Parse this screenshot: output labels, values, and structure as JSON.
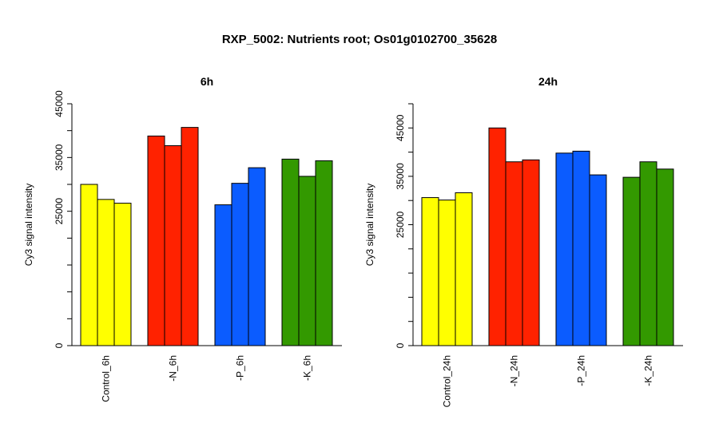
{
  "figure": {
    "title": "RXP_5002: Nutrients root; Os01g0102700_35628"
  },
  "chart_data": [
    {
      "type": "bar",
      "title": "6h",
      "ylabel": "Cy3 signal intensity",
      "xlabel": "",
      "ylim": [
        0,
        45000
      ],
      "y_ticks": [
        0,
        25000,
        35000,
        45000
      ],
      "y_tick_labels": [
        "0",
        "25000",
        "35000",
        "45000"
      ],
      "categories": [
        "Control_6h",
        "-N_6h",
        "-P_6h",
        "-K_6h"
      ],
      "colors": [
        "#ffff00",
        "#ff2200",
        "#0b5cff",
        "#339900"
      ],
      "values": [
        [
          30000,
          27200,
          26500
        ],
        [
          39000,
          37200,
          40600
        ],
        [
          26200,
          30200,
          33100
        ],
        [
          34700,
          31500,
          34400
        ]
      ],
      "grid": false,
      "legend": "none"
    },
    {
      "type": "bar",
      "title": "24h",
      "ylabel": "Cy3 signal intensity",
      "xlabel": "",
      "ylim": [
        0,
        50000
      ],
      "y_ticks": [
        0,
        25000,
        35000,
        45000
      ],
      "y_tick_labels": [
        "0",
        "25000",
        "35000",
        "45000"
      ],
      "categories": [
        "Control_24h",
        "-N_24h",
        "-P_24h",
        "-K_24h"
      ],
      "colors": [
        "#ffff00",
        "#ff2200",
        "#0b5cff",
        "#339900"
      ],
      "values": [
        [
          30600,
          30100,
          31600
        ],
        [
          45000,
          38000,
          38400
        ],
        [
          39800,
          40200,
          35300
        ],
        [
          34800,
          38000,
          36500
        ]
      ],
      "grid": false,
      "legend": "none"
    }
  ]
}
